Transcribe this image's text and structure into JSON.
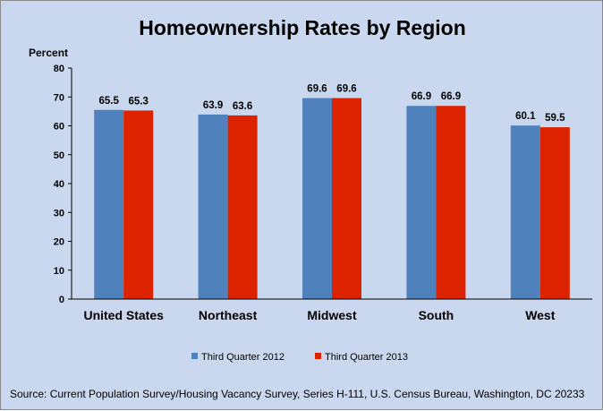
{
  "chart_data": {
    "type": "bar",
    "title": "Homeownership Rates by Region",
    "ylabel": "Percent",
    "xlabel": "",
    "ylim": [
      0,
      80
    ],
    "yticks": [
      0,
      10,
      20,
      30,
      40,
      50,
      60,
      70,
      80
    ],
    "grid": false,
    "legend_position": "bottom",
    "categories": [
      "United States",
      "Northeast",
      "Midwest",
      "South",
      "West"
    ],
    "series": [
      {
        "name": "Third Quarter 2012",
        "color": "#4f81bd",
        "values": [
          65.5,
          63.9,
          69.6,
          66.9,
          60.1
        ],
        "labels": [
          "65.5",
          "63.9",
          "69.6",
          "66.9",
          "60.1"
        ]
      },
      {
        "name": "Third Quarter 2013",
        "color": "#dd2200",
        "values": [
          65.3,
          63.6,
          69.6,
          66.9,
          59.5
        ],
        "labels": [
          "65.3",
          "63.6",
          "69.6",
          "66.9",
          "59.5"
        ]
      }
    ],
    "source": "Source: Current Population Survey/Housing Vacancy Survey, Series H-111, U.S. Census Bureau, Washington, DC 20233"
  }
}
